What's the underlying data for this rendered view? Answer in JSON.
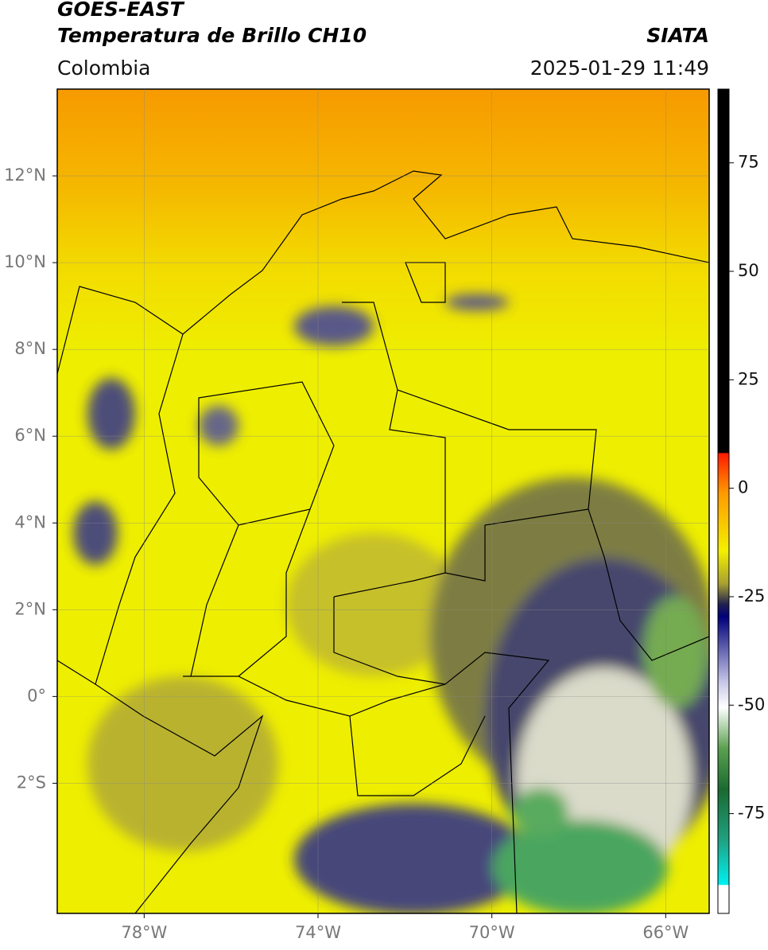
{
  "header": {
    "title": "GOES-EAST",
    "subtitle": "Temperatura de Brillo CH10",
    "source": "SIATA",
    "region": "Colombia",
    "datetime": "2025-01-29 11:49"
  },
  "map": {
    "xlim": [
      -80,
      -65
    ],
    "ylim": [
      -5,
      14
    ],
    "xticks": [
      {
        "value": -78,
        "label": "78°W"
      },
      {
        "value": -74,
        "label": "74°W"
      },
      {
        "value": -70,
        "label": "70°W"
      },
      {
        "value": -66,
        "label": "66°W"
      }
    ],
    "yticks": [
      {
        "value": 12,
        "label": "12°N"
      },
      {
        "value": 10,
        "label": "10°N"
      },
      {
        "value": 8,
        "label": "8°N"
      },
      {
        "value": 6,
        "label": "6°N"
      },
      {
        "value": 4,
        "label": "4°N"
      },
      {
        "value": 2,
        "label": "2°N"
      },
      {
        "value": 0,
        "label": "0°"
      },
      {
        "value": -2,
        "label": "2°S"
      }
    ],
    "grid": true
  },
  "colorbar": {
    "lim": [
      -98,
      92
    ],
    "ticks": [
      75,
      50,
      25,
      0,
      -25,
      -50,
      -75
    ]
  }
}
